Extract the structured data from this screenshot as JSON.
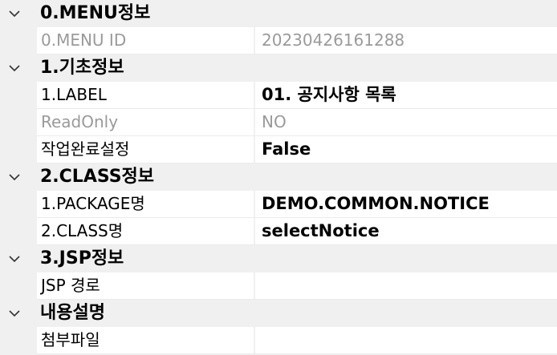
{
  "categories": [
    {
      "title": "0.MENU정보",
      "items": [
        {
          "name": "0.MENU ID",
          "value": "20230426161288"
        }
      ]
    },
    {
      "title": "1.기초정보",
      "items": [
        {
          "name": "1.LABEL",
          "value": "01. 공지사항 목록"
        },
        {
          "name": "ReadOnly",
          "value": "NO"
        },
        {
          "name": "작업완료설정",
          "value": "False"
        }
      ]
    },
    {
      "title": "2.CLASS정보",
      "items": [
        {
          "name": "1.PACKAGE명",
          "value": "DEMO.COMMON.NOTICE"
        },
        {
          "name": "2.CLASS명",
          "value": "selectNotice"
        }
      ]
    },
    {
      "title": "3.JSP정보",
      "items": [
        {
          "name": "JSP 경로",
          "value": ""
        }
      ]
    },
    {
      "title": "내용설명",
      "items": [
        {
          "name": "첨부파일",
          "value": ""
        }
      ]
    }
  ],
  "colors": {
    "category_bg": "#f0f0f0",
    "cell_bg": "#ffffff",
    "disabled_text": "#9a9a9a"
  },
  "icons": {
    "expander": "chevron-down-icon"
  }
}
